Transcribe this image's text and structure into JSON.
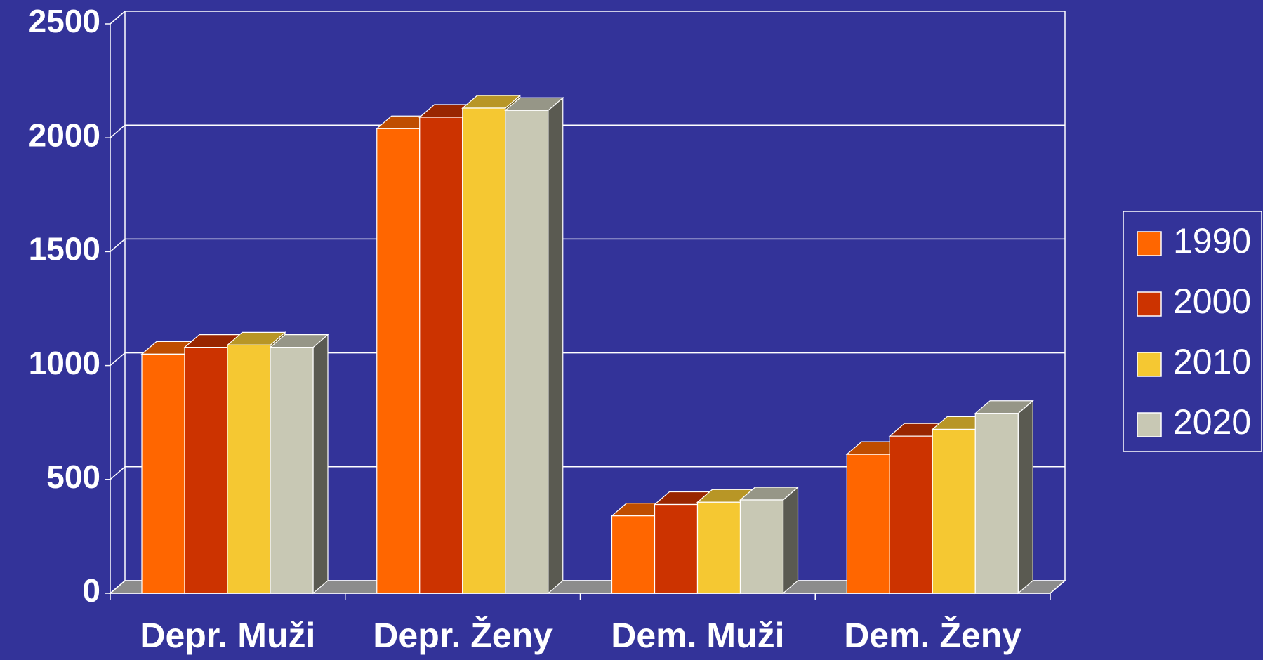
{
  "chart_data": {
    "type": "bar3d",
    "categories": [
      "Depr. Muži",
      "Depr. Ženy",
      "Dem. Muži",
      "Dem. Ženy"
    ],
    "series": [
      {
        "name": "1990",
        "color": "#ff6600",
        "values": [
          1050,
          2040,
          340,
          610
        ]
      },
      {
        "name": "2000",
        "color": "#cc3300",
        "values": [
          1080,
          2090,
          390,
          690
        ]
      },
      {
        "name": "2010",
        "color": "#f5c832",
        "values": [
          1090,
          2130,
          400,
          720
        ]
      },
      {
        "name": "2020",
        "color": "#c8c8b4",
        "values": [
          1080,
          2120,
          410,
          790
        ]
      }
    ],
    "ylim": [
      0,
      2500
    ],
    "yticks": [
      0,
      500,
      1000,
      1500,
      2000,
      2500
    ],
    "grid": true,
    "legend": "right"
  }
}
